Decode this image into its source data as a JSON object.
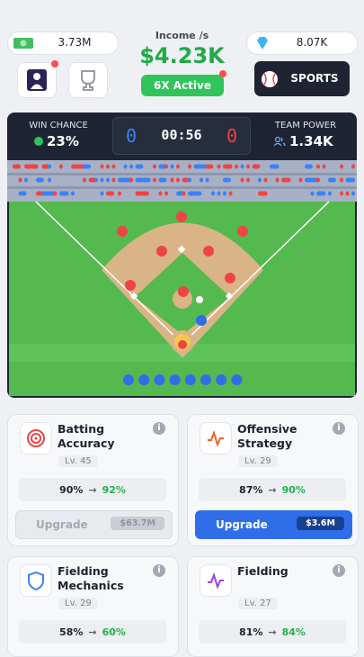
{
  "header": {
    "cash": "3.73M",
    "income_label": "Income /s",
    "income": "$4.23K",
    "boost": "6X Active",
    "gems": "8.07K",
    "sports_button": "SPORTS"
  },
  "match": {
    "win_chance_label": "WIN CHANCE",
    "win_chance": "23%",
    "score_left": "0",
    "timer": "00:56",
    "score_right": "0",
    "team_power_label": "TEAM POWER",
    "team_power": "1.34K"
  },
  "cards": [
    {
      "title": "Batting Accuracy",
      "level": "Lv. 45",
      "from": "90%",
      "to": "92%",
      "button": {
        "label": "Upgrade",
        "price": "$63.7M"
      }
    },
    {
      "title": "Offensive Strategy",
      "level": "Lv. 29",
      "from": "87%",
      "to": "90%",
      "button": {
        "label": "Upgrade",
        "price": "$3.6M"
      }
    },
    {
      "title": "Fielding Mechanics",
      "level": "Lv. 29",
      "from": "58%",
      "to": "60%"
    },
    {
      "title": "Fielding",
      "level": "Lv. 27",
      "from": "81%",
      "to": "84%"
    }
  ]
}
